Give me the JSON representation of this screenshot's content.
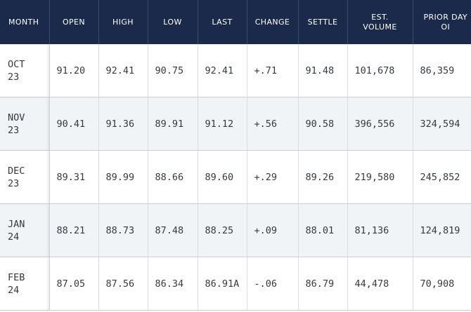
{
  "table": {
    "headers": [
      {
        "line1": "MONTH",
        "line2": ""
      },
      {
        "line1": "OPEN",
        "line2": ""
      },
      {
        "line1": "HIGH",
        "line2": ""
      },
      {
        "line1": "LOW",
        "line2": ""
      },
      {
        "line1": "LAST",
        "line2": ""
      },
      {
        "line1": "CHANGE",
        "line2": ""
      },
      {
        "line1": "SETTLE",
        "line2": ""
      },
      {
        "line1": "EST.",
        "line2": "VOLUME"
      },
      {
        "line1": "PRIOR DAY",
        "line2": "OI"
      }
    ],
    "rows": [
      {
        "month": "OCT",
        "year": "23",
        "open": "91.20",
        "high": "92.41",
        "low": "90.75",
        "last": "92.41",
        "change": "+.71",
        "settle": "91.48",
        "volume": "101,678",
        "prior_oi": "86,359"
      },
      {
        "month": "NOV",
        "year": "23",
        "open": "90.41",
        "high": "91.36",
        "low": "89.91",
        "last": "91.12",
        "change": "+.56",
        "settle": "90.58",
        "volume": "396,556",
        "prior_oi": "324,594"
      },
      {
        "month": "DEC",
        "year": "23",
        "open": "89.31",
        "high": "89.99",
        "low": "88.66",
        "last": "89.60",
        "change": "+.29",
        "settle": "89.26",
        "volume": "219,580",
        "prior_oi": "245,852"
      },
      {
        "month": "JAN",
        "year": "24",
        "open": "88.21",
        "high": "88.73",
        "low": "87.48",
        "last": "88.25",
        "change": "+.09",
        "settle": "88.01",
        "volume": "81,136",
        "prior_oi": "124,819"
      },
      {
        "month": "FEB",
        "year": "24",
        "open": "87.05",
        "high": "87.56",
        "low": "86.34",
        "last": "86.91A",
        "change": "-.06",
        "settle": "86.79",
        "volume": "44,478",
        "prior_oi": "70,908"
      }
    ]
  },
  "colors": {
    "header_bg": "#1b2a4a",
    "header_text": "#ffffff",
    "stripe_bg": "#f1f4f7",
    "cell_text": "#333a40"
  }
}
